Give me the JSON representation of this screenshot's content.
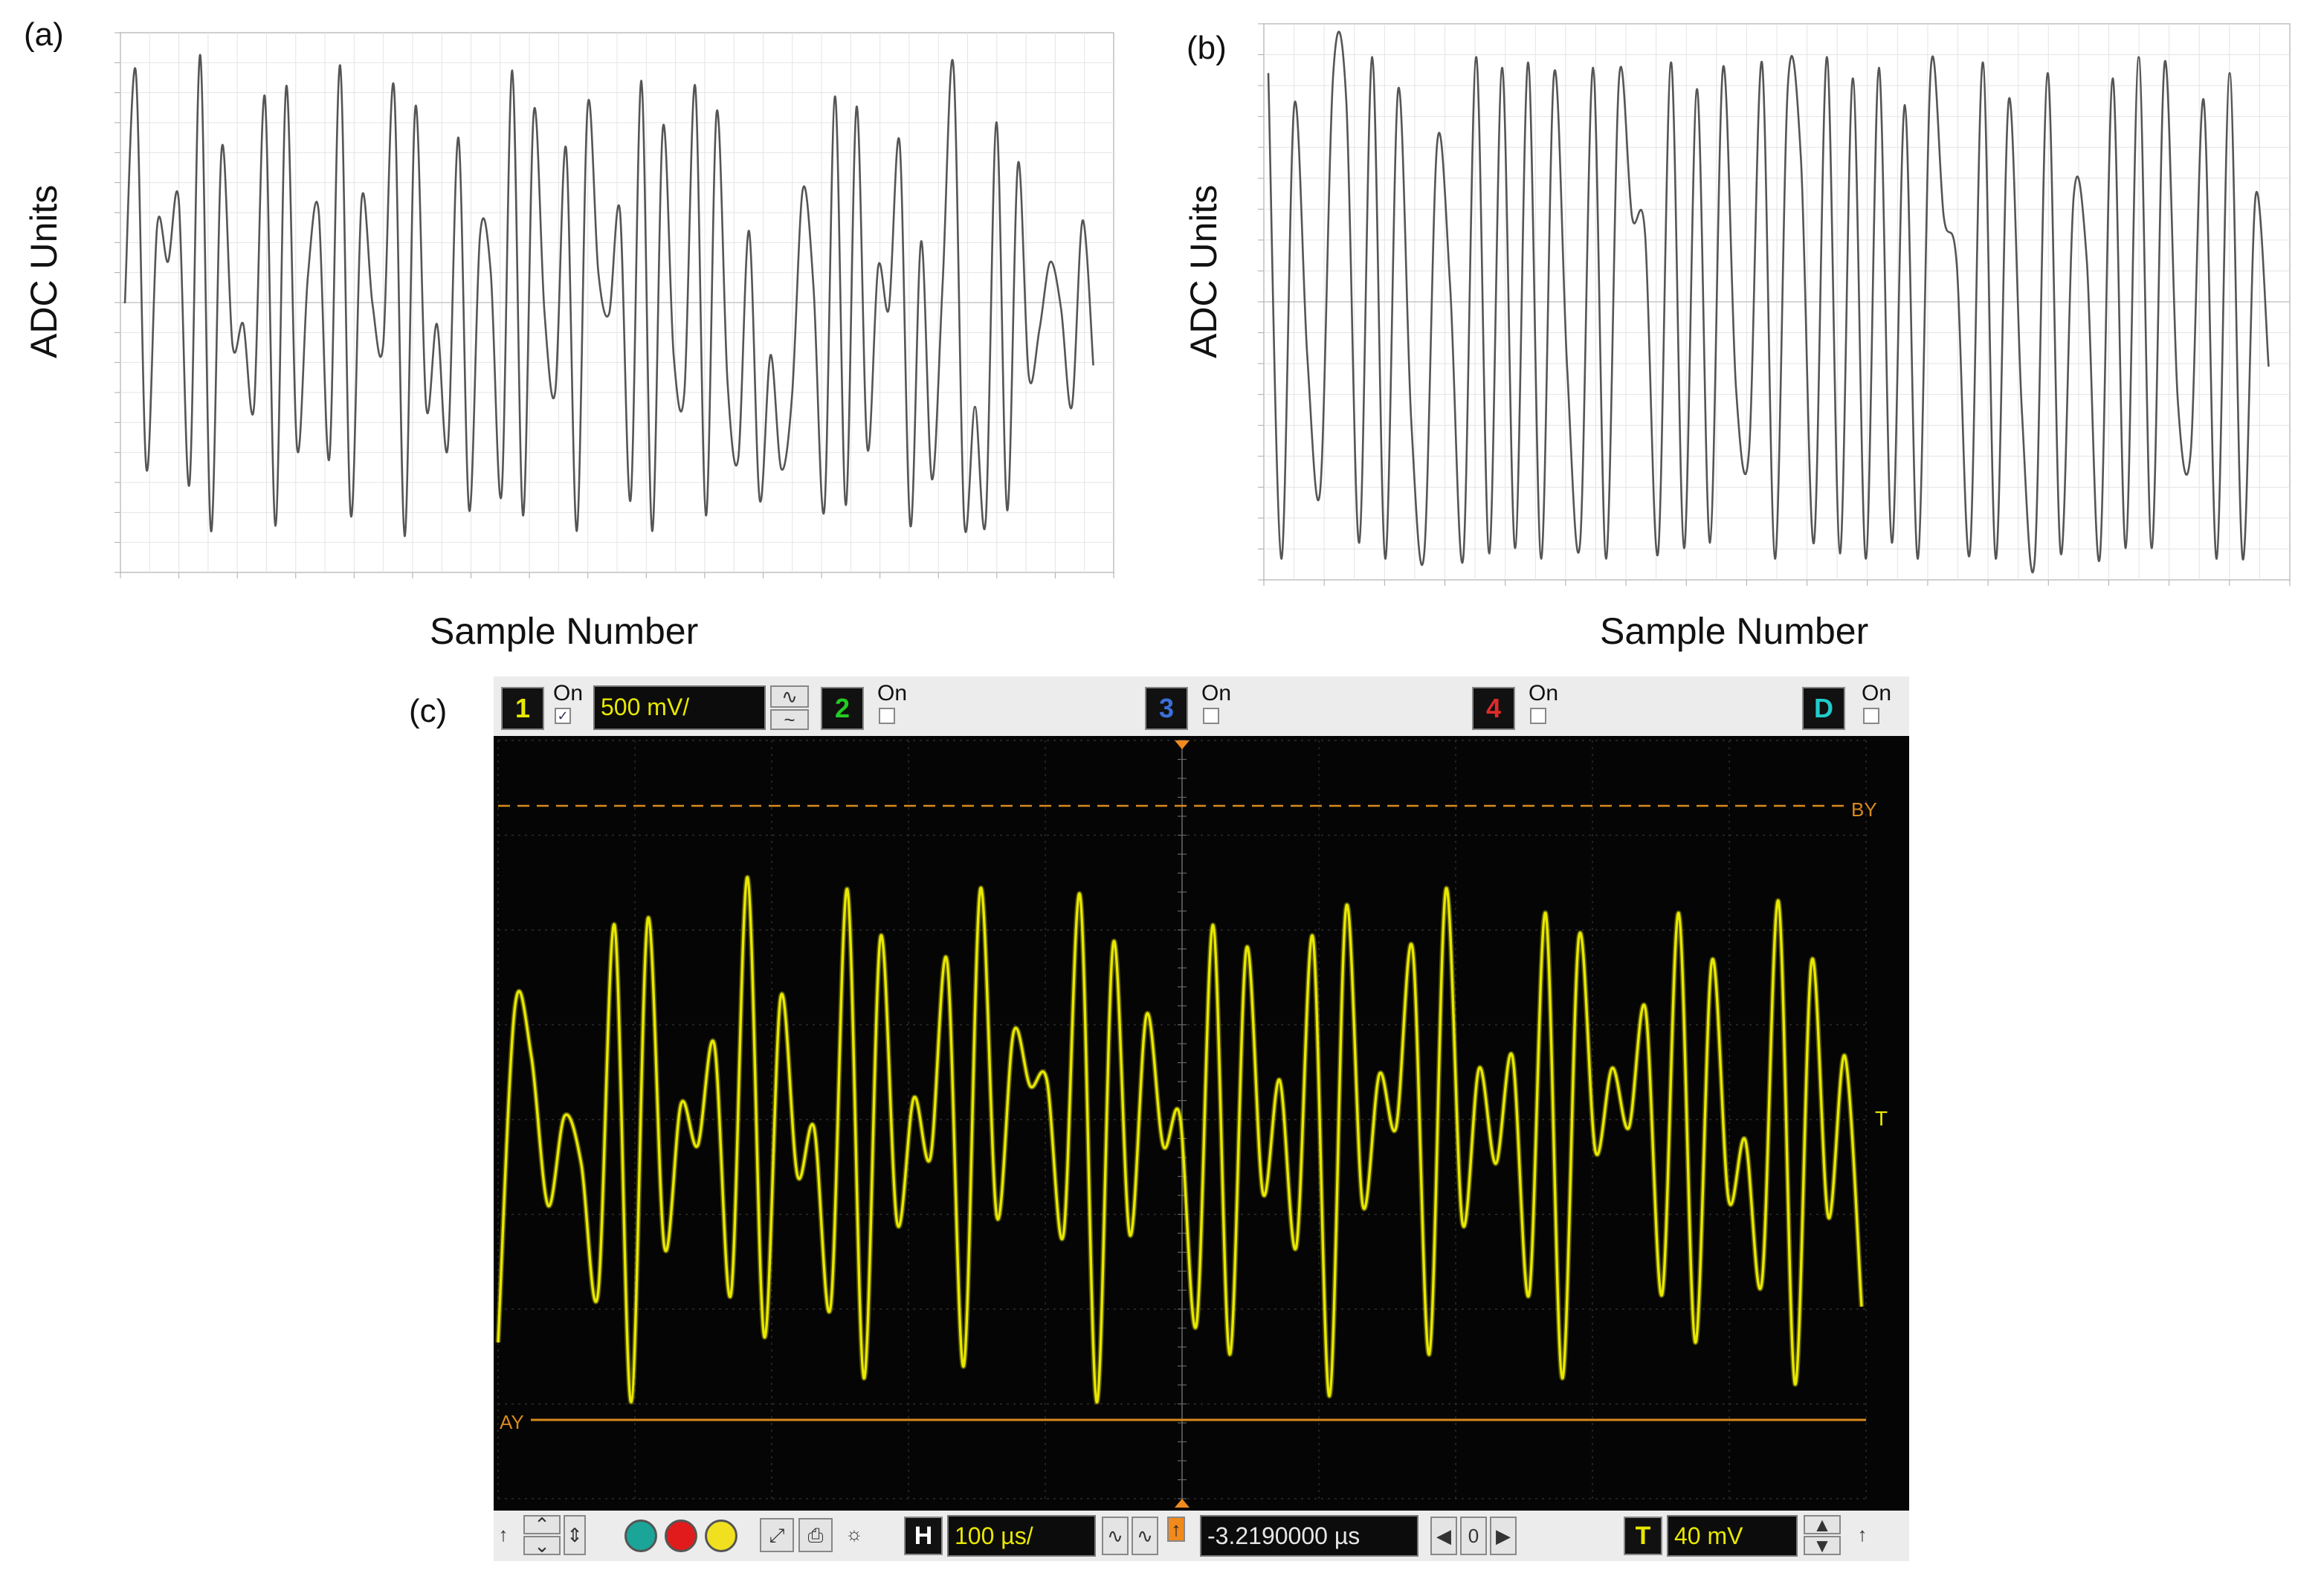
{
  "panels": {
    "a": {
      "label": "(a)",
      "ylabel": "ADC Units",
      "xlabel": "Sample Number"
    },
    "b": {
      "label": "(b)",
      "ylabel": "ADC Units",
      "xlabel": "Sample Number"
    },
    "c": {
      "label": "(c)"
    }
  },
  "chart_data": [
    {
      "type": "line",
      "panel": "(a)",
      "xlabel": "Sample Number",
      "ylabel": "ADC Units",
      "xlim": [
        0,
        1050
      ],
      "ylim": [
        0,
        1
      ],
      "grid": true,
      "series_color": "#555555",
      "series": [
        {
          "values_normalized": [
            0.5,
            0.95,
            0.18,
            0.65,
            0.58,
            0.7,
            0.15,
            0.98,
            0.06,
            0.8,
            0.42,
            0.46,
            0.3,
            0.9,
            0.07,
            0.92,
            0.22,
            0.55,
            0.68,
            0.2,
            0.96,
            0.09,
            0.7,
            0.5,
            0.42,
            0.92,
            0.05,
            0.88,
            0.3,
            0.46,
            0.22,
            0.82,
            0.1,
            0.63,
            0.56,
            0.13,
            0.95,
            0.09,
            0.87,
            0.48,
            0.33,
            0.8,
            0.06,
            0.88,
            0.56,
            0.48,
            0.68,
            0.12,
            0.93,
            0.06,
            0.84,
            0.4,
            0.33,
            0.92,
            0.09,
            0.87,
            0.35,
            0.2,
            0.64,
            0.12,
            0.4,
            0.18,
            0.32,
            0.72,
            0.53,
            0.1,
            0.9,
            0.11,
            0.88,
            0.22,
            0.57,
            0.49,
            0.81,
            0.07,
            0.62,
            0.16,
            0.54,
            0.96,
            0.08,
            0.3,
            0.08,
            0.85,
            0.1,
            0.77,
            0.36,
            0.45,
            0.58,
            0.49,
            0.3,
            0.66,
            0.38
          ]
        }
      ]
    },
    {
      "type": "line",
      "panel": "(b)",
      "xlabel": "Sample Number",
      "ylabel": "ADC Units",
      "xlim": [
        0,
        1050
      ],
      "ylim": [
        0,
        1
      ],
      "grid": true,
      "series_color": "#555555",
      "series": [
        {
          "values_normalized": [
            0.93,
            0.02,
            0.87,
            0.4,
            0.15,
            0.93,
            0.88,
            0.05,
            0.96,
            0.02,
            0.9,
            0.28,
            0.03,
            0.8,
            0.53,
            0.02,
            0.96,
            0.03,
            0.94,
            0.04,
            0.95,
            0.02,
            0.93,
            0.38,
            0.05,
            0.94,
            0.02,
            0.92,
            0.66,
            0.63,
            0.03,
            0.95,
            0.04,
            0.9,
            0.05,
            0.94,
            0.34,
            0.22,
            0.95,
            0.02,
            0.91,
            0.77,
            0.05,
            0.96,
            0.03,
            0.92,
            0.02,
            0.94,
            0.05,
            0.87,
            0.02,
            0.94,
            0.66,
            0.57,
            0.03,
            0.95,
            0.02,
            0.88,
            0.3,
            0.02,
            0.93,
            0.03,
            0.7,
            0.58,
            0.02,
            0.92,
            0.04,
            0.96,
            0.04,
            0.95,
            0.32,
            0.22,
            0.88,
            0.02,
            0.93,
            0.02,
            0.7,
            0.38
          ]
        }
      ]
    },
    {
      "type": "line",
      "panel": "(c)",
      "series_color": "#e8e800",
      "cursor_A_label": "AY",
      "cursor_B_label": "BY",
      "series": [
        {
          "values_normalized": [
            0.12,
            0.68,
            0.6,
            0.35,
            0.5,
            0.42,
            0.2,
            0.82,
            0.02,
            0.83,
            0.28,
            0.52,
            0.45,
            0.62,
            0.2,
            0.9,
            0.13,
            0.7,
            0.4,
            0.48,
            0.18,
            0.88,
            0.06,
            0.8,
            0.32,
            0.53,
            0.43,
            0.76,
            0.08,
            0.88,
            0.33,
            0.64,
            0.55,
            0.56,
            0.3,
            0.87,
            0.02,
            0.79,
            0.3,
            0.67,
            0.45,
            0.5,
            0.15,
            0.82,
            0.1,
            0.78,
            0.37,
            0.56,
            0.28,
            0.8,
            0.03,
            0.85,
            0.35,
            0.57,
            0.48,
            0.78,
            0.1,
            0.88,
            0.32,
            0.58,
            0.42,
            0.6,
            0.2,
            0.84,
            0.06,
            0.8,
            0.44,
            0.58,
            0.48,
            0.68,
            0.2,
            0.84,
            0.12,
            0.76,
            0.36,
            0.46,
            0.22,
            0.86,
            0.05,
            0.76,
            0.33,
            0.6,
            0.18
          ]
        }
      ]
    }
  ],
  "scope": {
    "channels": [
      {
        "num": "1",
        "on": "On",
        "color": "#e8e800",
        "checked": true
      },
      {
        "num": "2",
        "on": "On",
        "color": "#22cc22",
        "checked": false
      },
      {
        "num": "3",
        "on": "On",
        "color": "#3b6fd8",
        "checked": false
      },
      {
        "num": "4",
        "on": "On",
        "color": "#e02a2a",
        "checked": false
      },
      {
        "num": "D",
        "on": "On",
        "color": "#22cccc",
        "checked": false
      }
    ],
    "vertical_scale": "500 mV/",
    "horizontal_label": "H",
    "time_per_div": "100 µs/",
    "delay": "-3.2190000 µs",
    "delay_step": "0",
    "trigger_label": "T",
    "trigger_level": "40 mV",
    "cursor_A": "AY",
    "cursor_B": "BY",
    "trigger_marker": "T"
  }
}
